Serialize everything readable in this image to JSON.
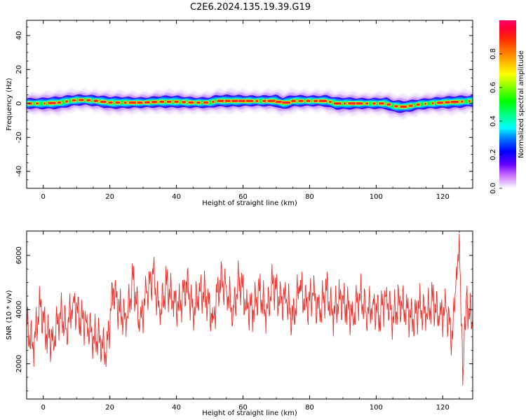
{
  "figure": {
    "title": "C2E6.2024.135.19.39.G19"
  },
  "chart_data": [
    {
      "type": "heatmap",
      "xlabel": "Height of straight line (km)",
      "ylabel": "Frequency (Hz)",
      "xlim": [
        -5,
        129
      ],
      "ylim": [
        -50,
        49
      ],
      "xticks": [
        "0",
        "20",
        "40",
        "60",
        "80",
        "100",
        "120"
      ],
      "xtick_values": [
        0,
        20,
        40,
        60,
        80,
        100,
        120
      ],
      "yticks": [
        "-40",
        "-20",
        "0",
        "20",
        "40"
      ],
      "ytick_values": [
        -40,
        -20,
        0,
        20,
        40
      ],
      "colorbar": {
        "label": "Normalized spectral amplitude",
        "range": [
          0,
          1
        ],
        "ticks": [
          "0.0",
          "0.2",
          "0.4",
          "0.6",
          "0.8"
        ],
        "tick_values": [
          0.0,
          0.2,
          0.4,
          0.6,
          0.8
        ],
        "colormap": "gist_rainbow_r"
      },
      "ridge": {
        "x": [
          -5,
          0,
          5,
          8,
          10,
          13,
          16,
          20,
          25,
          30,
          35,
          40,
          45,
          50,
          52,
          55,
          60,
          65,
          70,
          72,
          75,
          80,
          85,
          88,
          90,
          95,
          100,
          103,
          105,
          108,
          110,
          113,
          116,
          120,
          125,
          129
        ],
        "y": [
          0,
          0,
          0.5,
          1.5,
          2,
          2,
          1.5,
          0.5,
          0.5,
          0.5,
          1,
          1,
          0.5,
          0.5,
          1.5,
          1.5,
          1.5,
          1.5,
          1.5,
          0,
          1.5,
          1.5,
          1.5,
          0,
          0,
          0,
          0,
          0,
          -1.5,
          -2,
          -1.5,
          -0.5,
          0,
          0.5,
          1,
          1.5
        ]
      }
    },
    {
      "type": "line",
      "xlabel": "Height of straight line (km)",
      "ylabel": "SNR (10 * v/v)",
      "xlim": [
        -5,
        129
      ],
      "ylim": [
        700,
        6900
      ],
      "xticks": [
        "0",
        "20",
        "40",
        "60",
        "80",
        "100",
        "120"
      ],
      "xtick_values": [
        0,
        20,
        40,
        60,
        80,
        100,
        120
      ],
      "yticks": [
        "2000",
        "4000",
        "6000"
      ],
      "ytick_values": [
        2000,
        4000,
        6000
      ],
      "series": [
        {
          "color": "#e8302a",
          "x": [
            -5,
            -3,
            -1,
            1,
            3,
            5,
            7,
            9,
            11,
            13,
            15,
            17,
            19,
            21,
            23,
            25,
            27,
            29,
            31,
            33,
            35,
            37,
            39,
            41,
            43,
            45,
            47,
            49,
            51,
            53,
            55,
            57,
            59,
            61,
            63,
            65,
            67,
            69,
            71,
            73,
            75,
            77,
            79,
            81,
            83,
            85,
            87,
            89,
            91,
            93,
            95,
            97,
            99,
            101,
            103,
            105,
            107,
            109,
            111,
            113,
            115,
            117,
            119,
            121,
            123,
            124,
            125,
            126,
            127,
            129
          ],
          "values": [
            3400,
            2600,
            4200,
            3100,
            2800,
            3900,
            3300,
            4300,
            3700,
            3500,
            3000,
            2900,
            2400,
            4800,
            3900,
            3600,
            5100,
            3400,
            4600,
            5300,
            3800,
            4900,
            4300,
            4100,
            5000,
            3900,
            4700,
            4500,
            3600,
            5100,
            4800,
            3900,
            5200,
            4100,
            4000,
            4700,
            3800,
            5000,
            4300,
            4400,
            3600,
            4900,
            4100,
            4600,
            3900,
            4700,
            3800,
            4400,
            4200,
            3700,
            4600,
            3900,
            4200,
            3800,
            4500,
            3700,
            4300,
            4000,
            3600,
            4100,
            3800,
            4300,
            3700,
            4000,
            2900,
            5200,
            6800,
            1200,
            4300,
            3500
          ]
        }
      ]
    }
  ]
}
